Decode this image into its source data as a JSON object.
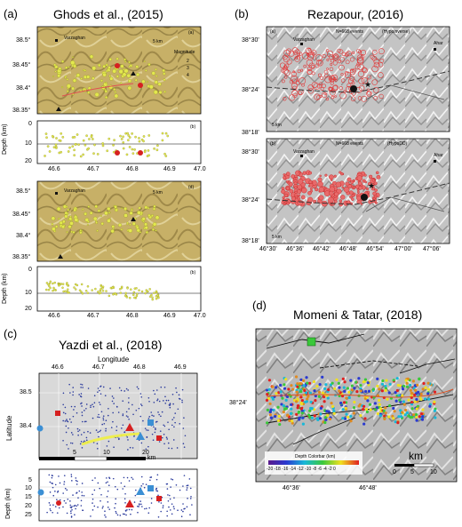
{
  "panel_a": {
    "letter": "(a)",
    "title": "Ghods et al., (2015)",
    "map1": {
      "sublabel": "(a)",
      "place": "Varzaghan",
      "scale": "5 km",
      "legend_title": "Magnitude",
      "legend_items": [
        "2",
        "3",
        "4"
      ],
      "lat_ticks": [
        "38.5°",
        "38.45°",
        "38.4°",
        "38.35°"
      ]
    },
    "depth1": {
      "sublabel": "(b)",
      "ylabel": "Depth (km)",
      "y_ticks": [
        "0",
        "10",
        "20"
      ]
    },
    "map2": {
      "sublabel": "(d)",
      "place": "Varzaghan",
      "scale": "5 km",
      "lat_ticks": [
        "38.5°",
        "38.45°",
        "38.4°",
        "38.35°"
      ]
    },
    "depth2": {
      "sublabel": "(b)",
      "ylabel": "Depth (km)",
      "y_ticks": [
        "0",
        "10",
        "20"
      ]
    },
    "x_ticks": [
      "46.6",
      "46.7",
      "46.8",
      "46.9",
      "47.0"
    ]
  },
  "panel_b": {
    "letter": "(b)",
    "title": "Rezapour, (2016)",
    "map1": {
      "sublabel": "(a)",
      "events": "N=668 events",
      "method": "(Hypoinverse)",
      "place": "Varzaghan",
      "town": "Ahar",
      "scale": "5 km"
    },
    "map2": {
      "sublabel": "(b)",
      "events": "N=668 events",
      "method": "(HypoDD)",
      "place": "Varzaghan",
      "town": "Ahar",
      "scale": "5 km"
    },
    "lat_ticks": [
      "38°30'",
      "38°24'",
      "38°18'"
    ],
    "lon_ticks": [
      "46°30'",
      "46°36'",
      "46°42'",
      "46°48'",
      "46°54'",
      "47°00'",
      "47°06'"
    ]
  },
  "panel_c": {
    "letter": "(c)",
    "title": "Yazdi et al., (2018)",
    "xlabel": "Longitude",
    "ylabel": "Latitude",
    "lon_ticks": [
      "46.6",
      "46.7",
      "46.8",
      "46.9"
    ],
    "lat_ticks": [
      "38.5",
      "38.4"
    ],
    "scalebar": [
      "5",
      "10",
      "20",
      "km"
    ],
    "depth_ylabel": "Depth (km)",
    "depth_ticks": [
      "5",
      "10",
      "15",
      "20",
      "25"
    ]
  },
  "panel_d": {
    "letter": "(d)",
    "title": "Momeni & Tatar, (2018)",
    "lat_tick": "38°24'",
    "lon_ticks": [
      "46°36'",
      "46°48'"
    ],
    "colorbar_title": "Depth Colorbar (km)",
    "colorbar_ticks": "-20 -18 -16 -14 -12 -10 -8 -6 -4 -2 0",
    "scale_unit": "km",
    "scale_ticks": [
      "0",
      "5",
      "10"
    ]
  },
  "colors": {
    "terrain": "#c9b46c",
    "event_yellow": "#e3e84e",
    "event_red": "#d62020",
    "event_blue": "#2a3a9c",
    "symbol_blue": "#3b8fd4",
    "hillshade": "#a8a8a8"
  }
}
